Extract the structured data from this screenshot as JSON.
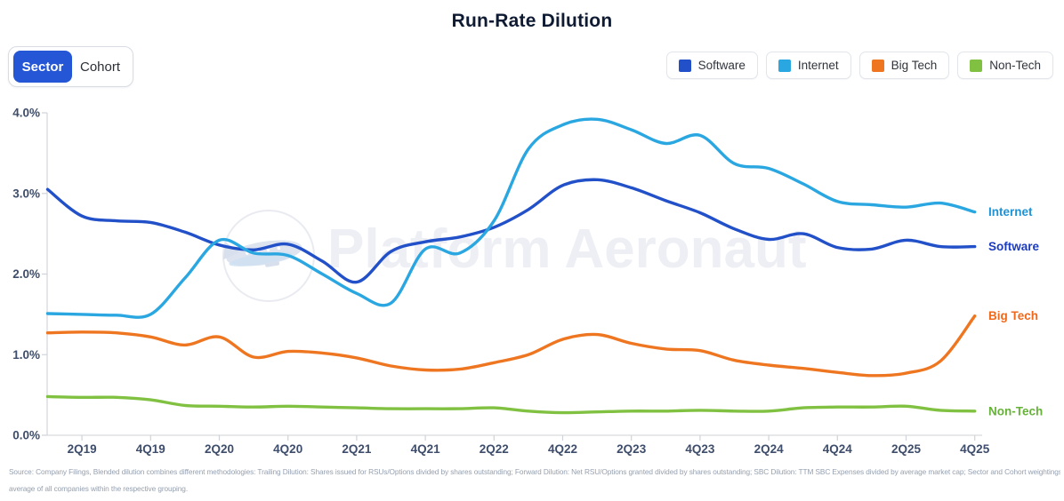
{
  "title": "Run-Rate Dilution",
  "toggle": {
    "active_bg": "#2456d6",
    "options": [
      {
        "label": "Sector",
        "active": true
      },
      {
        "label": "Cohort",
        "active": false
      }
    ]
  },
  "legend": {
    "items": [
      {
        "label": "Software",
        "color": "#2250c8"
      },
      {
        "label": "Internet",
        "color": "#2aa7e1"
      },
      {
        "label": "Big Tech",
        "color": "#ef7621"
      },
      {
        "label": "Non-Tech",
        "color": "#80c142"
      }
    ]
  },
  "watermark": {
    "text": "Platform Aeronaut"
  },
  "chart_data": {
    "type": "line",
    "title": "Run-Rate Dilution",
    "unit": "%",
    "grid": false,
    "ylim": [
      0,
      4
    ],
    "y_ticks": {
      "values": [
        0,
        1,
        2,
        3,
        4
      ],
      "labels": [
        "0.0%",
        "1.0%",
        "2.0%",
        "3.0%",
        "4.0%"
      ]
    },
    "x": [
      "1Q19",
      "2Q19",
      "3Q19",
      "4Q19",
      "1Q20",
      "2Q20",
      "3Q20",
      "4Q20",
      "1Q21",
      "2Q21",
      "3Q21",
      "4Q21",
      "1Q22",
      "2Q22",
      "3Q22",
      "4Q22",
      "1Q23",
      "2Q23",
      "3Q23",
      "4Q23",
      "1Q24",
      "2Q24",
      "3Q24",
      "4Q24",
      "1Q25",
      "2Q25",
      "3Q25",
      "4Q25"
    ],
    "x_tick_every_other_from": "2Q19",
    "x_tick_labels": [
      "2Q19",
      "4Q19",
      "2Q20",
      "4Q20",
      "2Q21",
      "4Q21",
      "2Q22",
      "4Q22",
      "2Q23",
      "4Q23",
      "2Q24",
      "4Q24",
      "2Q25",
      "4Q25"
    ],
    "legend_position": "top-right",
    "series": [
      {
        "name": "Software",
        "color": "#2250c8",
        "label_color": "#1c3cbe",
        "values": [
          3.05,
          2.72,
          2.66,
          2.64,
          2.52,
          2.36,
          2.3,
          2.37,
          2.16,
          1.9,
          2.28,
          2.4,
          2.46,
          2.58,
          2.8,
          3.1,
          3.17,
          3.07,
          2.91,
          2.76,
          2.56,
          2.43,
          2.5,
          2.33,
          2.31,
          2.42,
          2.34,
          2.34
        ]
      },
      {
        "name": "Internet",
        "color": "#2aa7e1",
        "label_color": "#1e93d6",
        "values": [
          1.51,
          1.5,
          1.49,
          1.5,
          1.95,
          2.42,
          2.26,
          2.23,
          2.0,
          1.76,
          1.64,
          2.31,
          2.26,
          2.66,
          3.55,
          3.85,
          3.92,
          3.79,
          3.62,
          3.72,
          3.37,
          3.31,
          3.12,
          2.9,
          2.86,
          2.83,
          2.88,
          2.77
        ]
      },
      {
        "name": "Big Tech",
        "color": "#ef7621",
        "label_color": "#f0681a",
        "values": [
          1.27,
          1.28,
          1.27,
          1.22,
          1.12,
          1.22,
          0.97,
          1.04,
          1.02,
          0.96,
          0.86,
          0.81,
          0.82,
          0.9,
          1.0,
          1.19,
          1.25,
          1.14,
          1.07,
          1.05,
          0.93,
          0.87,
          0.83,
          0.78,
          0.74,
          0.77,
          0.92,
          1.48
        ]
      },
      {
        "name": "Non-Tech",
        "color": "#80c142",
        "label_color": "#66b239",
        "values": [
          0.48,
          0.47,
          0.47,
          0.44,
          0.37,
          0.36,
          0.35,
          0.36,
          0.35,
          0.34,
          0.33,
          0.33,
          0.33,
          0.34,
          0.3,
          0.28,
          0.29,
          0.3,
          0.3,
          0.31,
          0.3,
          0.3,
          0.34,
          0.35,
          0.35,
          0.36,
          0.31,
          0.3
        ]
      }
    ]
  },
  "footer": {
    "line1": "Source: Company Filings, Blended dilution combines different methodologies: Trailing Dilution: Shares issued for RSUs/Options divided by shares outstanding; Forward Dilution: Net RSU/Options granted divided by shares outstanding; SBC Dilution: TTM SBC Expenses divided by average market cap; Sector and Cohort weightings are based on",
    "line2": "average of all companies within the respective grouping."
  }
}
